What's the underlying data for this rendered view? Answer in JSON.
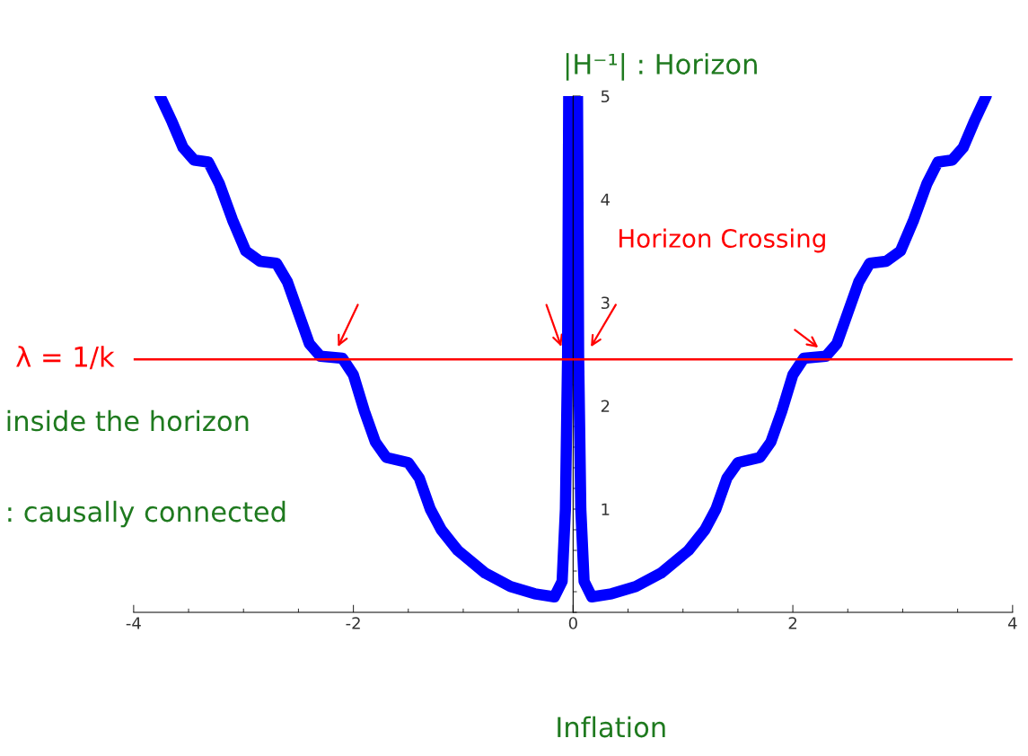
{
  "chart_data": {
    "type": "line",
    "ylabel": "|H⁻¹| : Horizon",
    "x": [
      -3.76,
      -3.65,
      -3.55,
      -3.45,
      -3.32,
      -3.22,
      -3.1,
      -2.98,
      -2.85,
      -2.7,
      -2.6,
      -2.5,
      -2.4,
      -2.3,
      -2.1,
      -2.0,
      -1.9,
      -1.8,
      -1.7,
      -1.5,
      -1.4,
      -1.3,
      -1.2,
      -1.05,
      -0.8,
      -0.57,
      -0.35,
      -0.17,
      -0.1,
      -0.07,
      -0.05,
      -0.04,
      0.04,
      0.05,
      0.07,
      0.1,
      0.17,
      0.35,
      0.57,
      0.8,
      1.05,
      1.2,
      1.3,
      1.4,
      1.5,
      1.7,
      1.8,
      1.9,
      2.0,
      2.1,
      2.3,
      2.4,
      2.5,
      2.6,
      2.7,
      2.85,
      2.98,
      3.1,
      3.22,
      3.32,
      3.45,
      3.55,
      3.65,
      3.76
    ],
    "series": [
      {
        "color": "#0000ff",
        "values": [
          5.0,
          4.75,
          4.5,
          4.38,
          4.36,
          4.15,
          3.8,
          3.5,
          3.4,
          3.38,
          3.2,
          2.9,
          2.6,
          2.48,
          2.46,
          2.3,
          1.95,
          1.65,
          1.5,
          1.45,
          1.3,
          1.0,
          0.8,
          0.6,
          0.38,
          0.25,
          0.18,
          0.15,
          0.3,
          1.0,
          2.5,
          5.0,
          5.0,
          2.5,
          1.0,
          0.3,
          0.15,
          0.18,
          0.25,
          0.38,
          0.6,
          0.8,
          1.0,
          1.3,
          1.45,
          1.5,
          1.65,
          1.95,
          2.3,
          2.46,
          2.48,
          2.6,
          2.9,
          3.2,
          3.38,
          3.4,
          3.5,
          3.8,
          4.15,
          4.36,
          4.38,
          4.5,
          4.75,
          5.0
        ]
      }
    ],
    "xlim": [
      -4,
      4
    ],
    "ylim": [
      0,
      5
    ],
    "xticks": [
      -4,
      -2,
      0,
      2,
      4
    ],
    "yticks": [
      1,
      2,
      3,
      4,
      5
    ],
    "ref_lines": [
      {
        "axis": "y",
        "value": 2.45,
        "color": "#ff0000"
      }
    ],
    "annotations": [
      "Horizon Crossing",
      "inside the horizon",
      ": causally connected",
      "Inflation",
      "λ = 1/k"
    ],
    "grid": false,
    "legend": false,
    "line_style": "solid"
  }
}
